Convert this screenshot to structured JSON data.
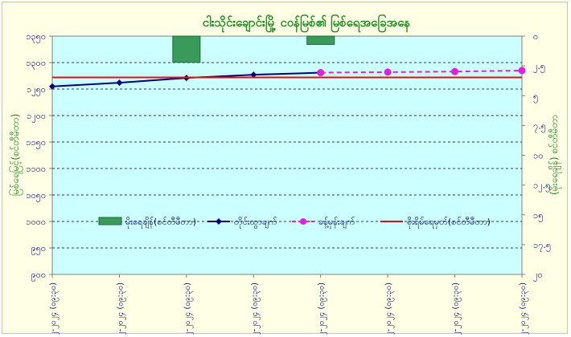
{
  "chart_data": {
    "type": "line",
    "title": "ငါးသိုင်းချောင်းမြို့ ငဝန်မြစ်၏ မြစ်ရေအခြေအနေ",
    "ylabel_left": "မြစ်ရေမြင့်(စင်တီမီတာ)",
    "ylabel_right": "(မိုးရေချိန်) စင်တီမီတာ",
    "y_left": {
      "min": 900,
      "max": 1350,
      "step": 50,
      "tick_labels": [
        "၉၀၀",
        "၉၅၀",
        "၁၀၀၀",
        "၁၀၅၀",
        "၁၁၀၀",
        "၁၁၅၀",
        "၁၂၀၀",
        "၁၂၅၀",
        "၁၃၀၀",
        "၁၃၅၀"
      ]
    },
    "y_right": {
      "min": 0,
      "max": 20,
      "step": 2.5,
      "reversed": true,
      "tick_labels": [
        "၀",
        "၂.၅",
        "၅",
        "၇.၅",
        "၁၀",
        "၁၂.၅",
        "၁၅",
        "၁၇.၅",
        "၂၀"
      ]
    },
    "categories": [
      "၁၀-၁၂-၂၀၂၄ (၀၉:၃၀)",
      "၁၁-၁၂-၂၀၂၄ (၀၉:၃၀)",
      "၁၂-၁၂-၂၀၂၄ (၀၉:၃၀)",
      "၁၃-၁၂-၂၀၂၄ (၀၉:၃၀)",
      "၁၄-၁၂-၂၀၂၄ (၀၉:၃၀)",
      "၁၅-၁၂-၂၀၂၄ (၀၉:၃၀)",
      "၁၆-၁၂-၂၀၂၄ (၀၉:၃၀)",
      "၁၇-၁၂-၂၀၂၄ (၀၉:၃၀)"
    ],
    "series": [
      {
        "name": "မိုးရေချိန်(စင်တီမီတာ)",
        "kind": "bar",
        "axis": "right",
        "color": "#3a9a5a",
        "values": [
          0,
          0,
          2.2,
          0,
          0.7,
          0,
          0,
          0
        ]
      },
      {
        "name": "တိုင်းထွာချက်",
        "kind": "line",
        "axis": "left",
        "color": "#00007a",
        "values": [
          1255,
          1262,
          1271,
          1277,
          1281,
          null,
          null,
          null
        ]
      },
      {
        "name": "ခန့်မှန်းချက်",
        "kind": "line-dashed",
        "axis": "left",
        "color": "#e020e0",
        "values": [
          null,
          null,
          null,
          null,
          1281,
          1282,
          1283,
          1285
        ]
      },
      {
        "name": "စိုးရိမ်ရေမှတ်(စင်တီမီတာ)",
        "kind": "hline",
        "axis": "left",
        "color": "#cc1a1a",
        "value": 1272
      }
    ],
    "grid": true,
    "legend_placement": "bottom-center",
    "plot_background": "#ccffff",
    "page_background": "#ffffe6"
  }
}
